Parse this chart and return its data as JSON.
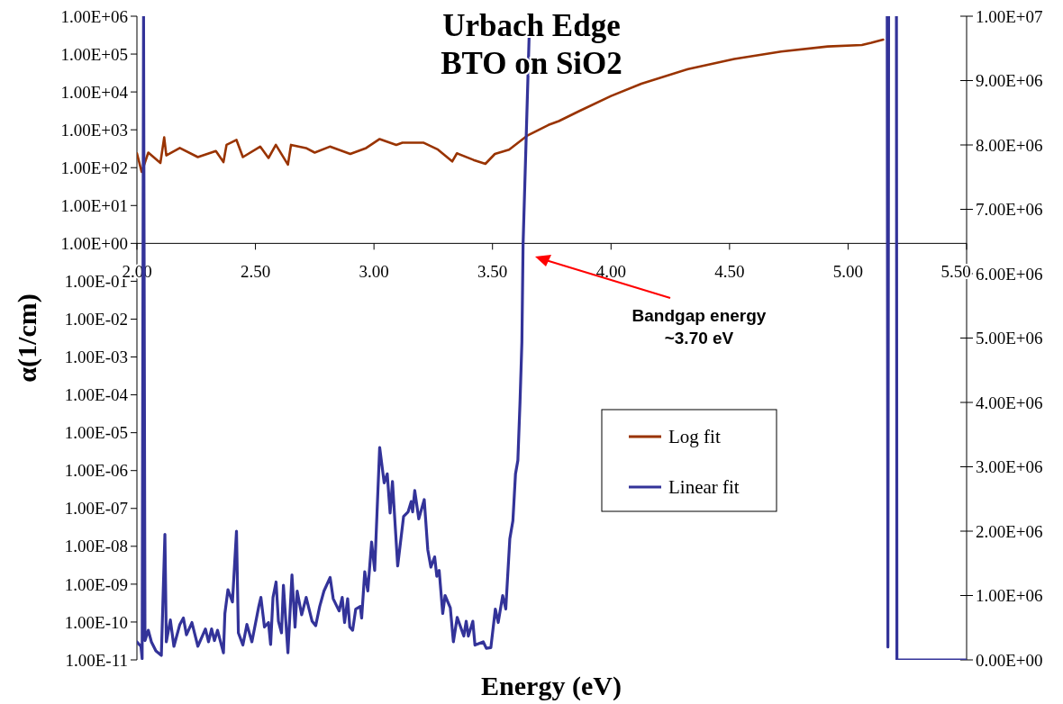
{
  "chart_data": {
    "type": "line",
    "title": "Urbach Edge\nBTO on SiO2",
    "xlabel": "Energy (eV)",
    "ylabel": "α(1/cm)",
    "log": "y",
    "legend": "right",
    "grid": false,
    "marker": "none",
    "line_style": "solid",
    "xlim": [
      2,
      5.5
    ],
    "xticks": [
      {
        "value": 2,
        "label": "2.00"
      },
      {
        "value": 2.5,
        "label": "2.50"
      },
      {
        "value": 3,
        "label": "3.00"
      },
      {
        "value": 3.5,
        "label": "3.50"
      },
      {
        "value": 4,
        "label": "4.00"
      },
      {
        "value": 4.5,
        "label": "4.50"
      },
      {
        "value": 5,
        "label": "5.00"
      },
      {
        "value": 5.5,
        "label": "5.50"
      }
    ],
    "ylim": [
      1e-11,
      1000000.0
    ],
    "yticks": [
      {
        "value": 1e-11,
        "label": "1.00E-11"
      },
      {
        "value": 1e-10,
        "label": "1.00E-10"
      },
      {
        "value": 1e-09,
        "label": "1.00E-09"
      },
      {
        "value": 1e-08,
        "label": "1.00E-08"
      },
      {
        "value": 1e-07,
        "label": "1.00E-07"
      },
      {
        "value": 1e-06,
        "label": "1.00E-06"
      },
      {
        "value": 1e-05,
        "label": "1.00E-05"
      },
      {
        "value": 0.0001,
        "label": "1.00E-04"
      },
      {
        "value": 0.001,
        "label": "1.00E-03"
      },
      {
        "value": 0.01,
        "label": "1.00E-02"
      },
      {
        "value": 0.1,
        "label": "1.00E-01"
      },
      {
        "value": 1,
        "label": "1.00E+00"
      },
      {
        "value": 10,
        "label": "1.00E+01"
      },
      {
        "value": 100,
        "label": "1.00E+02"
      },
      {
        "value": 1000,
        "label": "1.00E+03"
      },
      {
        "value": 10000,
        "label": "1.00E+04"
      },
      {
        "value": 100000,
        "label": "1.00E+05"
      },
      {
        "value": 1000000,
        "label": "1.00E+06"
      }
    ],
    "y2lim": [
      0,
      10000000
    ],
    "y2ticks": [
      {
        "value": 0,
        "label": "0.00E+00"
      },
      {
        "value": 1000000,
        "label": "1.00E+06"
      },
      {
        "value": 2000000,
        "label": "2.00E+06"
      },
      {
        "value": 3000000,
        "label": "3.00E+06"
      },
      {
        "value": 4000000,
        "label": "4.00E+06"
      },
      {
        "value": 5000000,
        "label": "5.00E+06"
      },
      {
        "value": 6000000,
        "label": "6.00E+06"
      },
      {
        "value": 7000000,
        "label": "7.00E+06"
      },
      {
        "value": 8000000,
        "label": "8.00E+06"
      },
      {
        "value": 9000000,
        "label": "9.00E+06"
      },
      {
        "value": 10000000,
        "label": "1.00E+07"
      }
    ],
    "annotations": [
      "Bandgap energy\n~3.70 eV"
    ],
    "series": [
      {
        "name": "Log fit",
        "color": "#993300",
        "x": [
          2.0,
          2.02,
          2.048,
          2.099,
          2.115,
          2.124,
          2.181,
          2.257,
          2.333,
          2.365,
          2.378,
          2.42,
          2.447,
          2.52,
          2.555,
          2.586,
          2.637,
          2.65,
          2.713,
          2.75,
          2.814,
          2.9,
          2.967,
          3.024,
          3.094,
          3.12,
          3.21,
          3.27,
          3.33,
          3.35,
          3.42,
          3.47,
          3.51,
          3.57,
          3.645,
          3.736,
          3.78,
          3.867,
          4.0,
          4.128,
          4.325,
          4.52,
          4.718,
          4.914,
          5.058,
          5.098,
          5.148
        ],
        "values": [
          240,
          77,
          250,
          133,
          630,
          210,
          330,
          190,
          275,
          140,
          400,
          540,
          190,
          360,
          180,
          400,
          120,
          400,
          330,
          250,
          360,
          230,
          330,
          570,
          400,
          455,
          455,
          300,
          146,
          240,
          160,
          126,
          230,
          300,
          690,
          1340,
          1700,
          3150,
          7800,
          16500,
          40000,
          74000,
          117000,
          159000,
          174000,
          199000,
          240000
        ]
      },
      {
        "name": "Linear fit",
        "color": "#333399",
        "axis": "y2",
        "x": [
          2.0,
          2.017,
          2.022,
          2.028,
          2.034,
          2.048,
          2.061,
          2.08,
          2.103,
          2.118,
          2.124,
          2.141,
          2.156,
          2.181,
          2.196,
          2.209,
          2.232,
          2.257,
          2.289,
          2.302,
          2.315,
          2.327,
          2.34,
          2.365,
          2.371,
          2.384,
          2.403,
          2.42,
          2.428,
          2.447,
          2.464,
          2.485,
          2.514,
          2.523,
          2.538,
          2.555,
          2.564,
          2.574,
          2.587,
          2.597,
          2.61,
          2.618,
          2.637,
          2.654,
          2.667,
          2.676,
          2.695,
          2.714,
          2.739,
          2.754,
          2.771,
          2.789,
          2.815,
          2.828,
          2.853,
          2.866,
          2.876,
          2.889,
          2.898,
          2.91,
          2.923,
          2.942,
          2.948,
          2.961,
          2.974,
          2.99,
          3.003,
          3.024,
          3.043,
          3.056,
          3.068,
          3.078,
          3.1,
          3.125,
          3.144,
          3.157,
          3.163,
          3.172,
          3.189,
          3.212,
          3.227,
          3.24,
          3.256,
          3.265,
          3.275,
          3.29,
          3.3,
          3.322,
          3.335,
          3.351,
          3.379,
          3.389,
          3.398,
          3.417,
          3.426,
          3.461,
          3.474,
          3.493,
          3.512,
          3.524,
          3.543,
          3.556,
          3.573,
          3.586,
          3.597,
          3.607,
          3.616,
          3.624,
          3.629,
          3.657,
          4.4,
          5.165,
          5.168,
          5.171,
          5.19,
          5.204,
          5.206,
          5.5
        ],
        "values": [
          280000,
          210000,
          20000,
          10000000,
          300000,
          460000,
          280000,
          140000,
          70000,
          1950000,
          280000,
          620000,
          210000,
          550000,
          650000,
          390000,
          580000,
          210000,
          480000,
          280000,
          480000,
          300000,
          460000,
          110000,
          720000,
          1090000,
          900000,
          2000000,
          420000,
          230000,
          550000,
          280000,
          830000,
          970000,
          510000,
          580000,
          240000,
          970000,
          1210000,
          600000,
          420000,
          1160000,
          110000,
          1320000,
          510000,
          1070000,
          700000,
          970000,
          600000,
          530000,
          830000,
          1070000,
          1280000,
          950000,
          760000,
          970000,
          580000,
          950000,
          510000,
          460000,
          790000,
          830000,
          650000,
          1370000,
          1070000,
          1830000,
          1390000,
          3300000,
          2750000,
          2890000,
          2280000,
          2770000,
          1460000,
          2230000,
          2300000,
          2460000,
          2300000,
          2630000,
          2190000,
          2490000,
          1710000,
          1440000,
          1600000,
          1300000,
          1390000,
          720000,
          1000000,
          810000,
          280000,
          660000,
          370000,
          600000,
          370000,
          600000,
          230000,
          280000,
          180000,
          190000,
          790000,
          580000,
          1000000,
          790000,
          1880000,
          2160000,
          2890000,
          3100000,
          4000000,
          4940000,
          6460000,
          10000000,
          null,
          10000000,
          200000,
          10000000,
          null,
          10000000,
          0,
          0
        ]
      }
    ]
  }
}
